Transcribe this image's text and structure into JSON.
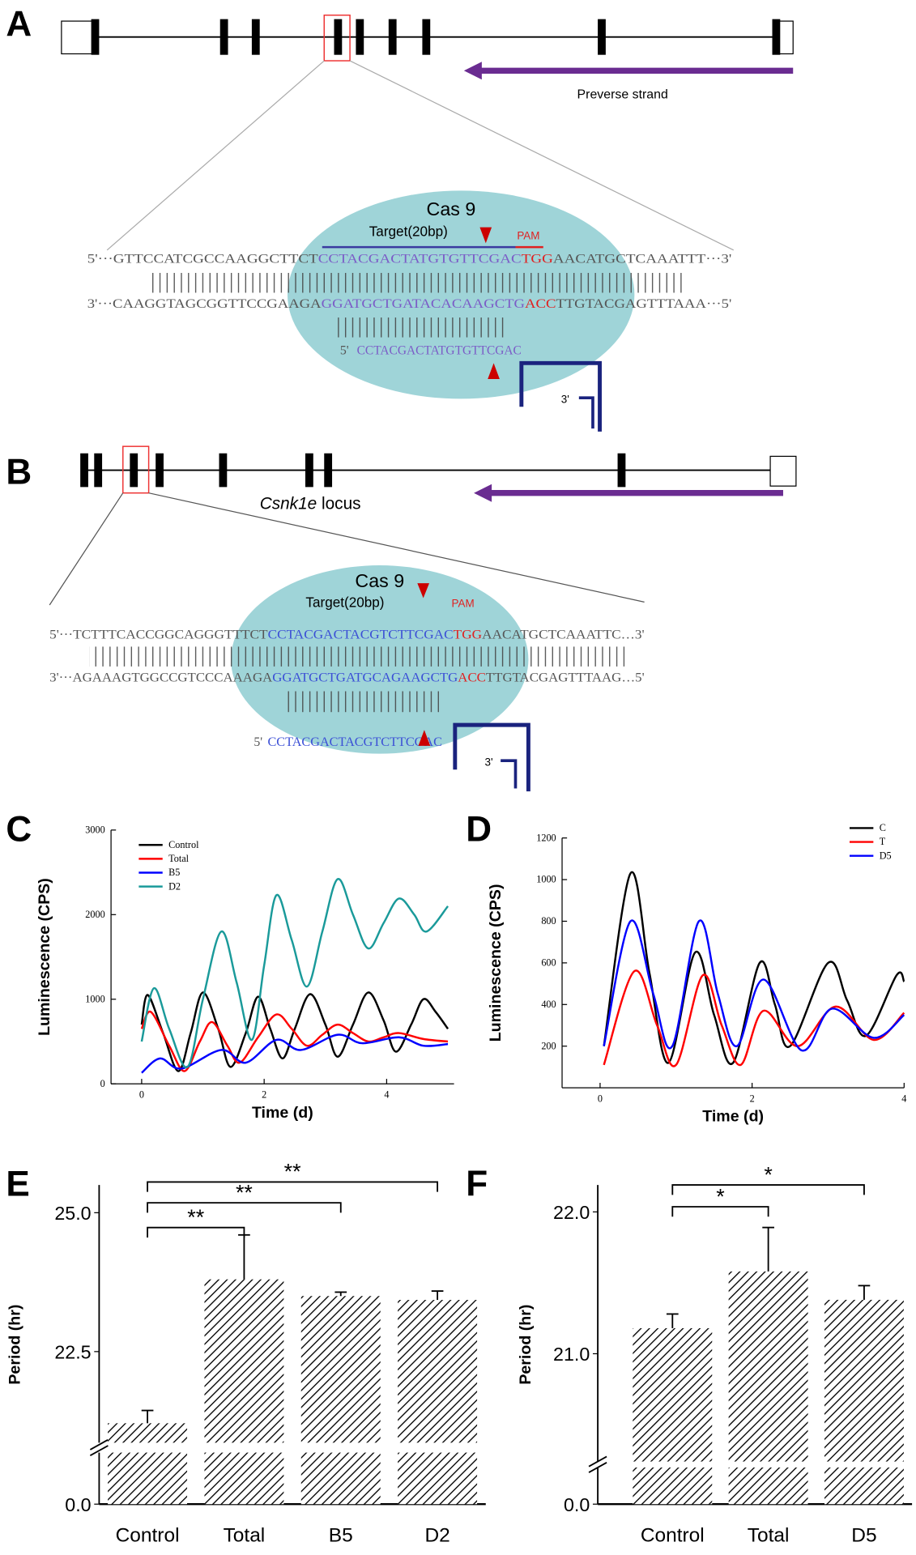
{
  "diagrams": {
    "A": {
      "label": "A",
      "strand_label": "Preverse strand",
      "cas9": "Cas 9",
      "target": "Target(20bp)",
      "pam": "PAM",
      "top_strand": [
        "5'···GTTCCATCGCCAAGGCTTCT",
        "CCTACGACTATGTGTTCGAC",
        "TGG",
        "AACATGCTCAAATTT···3'"
      ],
      "bottom_strand": [
        "3'···CAAGGTAGCGGTTCCGAAGA",
        "GGATGCTGATACACAAGCTG",
        "ACC",
        "TTGTACGAGTTTAAA···5'"
      ],
      "guide": [
        "5'",
        "CCTACGACTATGTGTTCGAC"
      ],
      "scaffold_end": "3'"
    },
    "B": {
      "label": "B",
      "locus": [
        "Csnk1e",
        " locus"
      ],
      "cas9": "Cas 9",
      "target": "Target(20bp)",
      "pam": "PAM",
      "top_strand": [
        "5'···TCTTTCACCGGCAGGGTTTCT",
        "CCTACGACTACGTCTTCGAC",
        "TGG",
        "AACATGCTCAAATTC…3'"
      ],
      "bottom_strand": [
        "3'···AGAAAGTGGCCGTCCCAAAGA",
        "GGATGCTGATGCAGAAGCTG",
        "ACC",
        "TTGTACGAGTTTAAG…5'"
      ],
      "guide": [
        "5'",
        "CCTACGACTACGTCTTCGAC"
      ],
      "scaffold_end": "3'"
    }
  },
  "chart_data": [
    {
      "panel": "C",
      "type": "line",
      "y_label": "Luminescence (CPS)",
      "x_label": "Time (d)",
      "xlim": [
        -0.5,
        5.1
      ],
      "ylim": [
        0,
        3000
      ],
      "xticks": [
        0,
        2,
        4
      ],
      "yticks": [
        0,
        1000,
        2000,
        3000
      ],
      "legend": "upper left",
      "series": [
        {
          "name": "Control",
          "color": "#000000",
          "x": [
            0,
            0.1,
            0.35,
            0.6,
            0.8,
            1.0,
            1.25,
            1.45,
            1.7,
            1.9,
            2.1,
            2.3,
            2.5,
            2.75,
            3.0,
            3.2,
            3.45,
            3.7,
            3.95,
            4.15,
            4.4,
            4.6,
            4.8,
            5.0
          ],
          "values": [
            700,
            1050,
            600,
            150,
            600,
            1080,
            650,
            200,
            600,
            1030,
            650,
            300,
            650,
            1060,
            700,
            320,
            700,
            1080,
            750,
            380,
            700,
            1000,
            850,
            650
          ]
        },
        {
          "name": "Total",
          "color": "#ff0000",
          "x": [
            0,
            0.15,
            0.45,
            0.7,
            0.95,
            1.15,
            1.4,
            1.6,
            1.9,
            2.2,
            2.45,
            2.7,
            2.95,
            3.2,
            3.45,
            3.7,
            3.95,
            4.2,
            4.6,
            5.0
          ],
          "values": [
            650,
            850,
            450,
            150,
            500,
            730,
            450,
            250,
            550,
            820,
            650,
            450,
            580,
            700,
            600,
            500,
            550,
            600,
            530,
            500
          ]
        },
        {
          "name": "B5",
          "color": "#0000ff",
          "x": [
            0,
            0.3,
            0.65,
            1.3,
            1.7,
            2.2,
            2.6,
            3.2,
            3.6,
            4.2,
            4.6,
            5.0
          ],
          "values": [
            130,
            300,
            180,
            400,
            250,
            520,
            400,
            580,
            480,
            550,
            450,
            470
          ]
        },
        {
          "name": "D2",
          "color": "#1a9a9a",
          "x": [
            0,
            0.2,
            0.45,
            0.75,
            1.0,
            1.3,
            1.55,
            1.8,
            2.0,
            2.2,
            2.45,
            2.7,
            2.95,
            3.2,
            3.45,
            3.7,
            3.95,
            4.2,
            4.45,
            4.65,
            5.0
          ],
          "values": [
            500,
            1130,
            650,
            200,
            1000,
            1800,
            1200,
            520,
            1400,
            2230,
            1700,
            1150,
            1800,
            2420,
            2000,
            1600,
            1900,
            2190,
            2000,
            1800,
            2100
          ]
        }
      ]
    },
    {
      "panel": "D",
      "type": "line",
      "y_label": "Luminescence (CPS)",
      "x_label": "Time (d)",
      "xlim": [
        -0.5,
        4
      ],
      "ylim": [
        0,
        1200
      ],
      "xticks": [
        0,
        2,
        4
      ],
      "yticks": [
        200,
        400,
        600,
        800,
        1000,
        1200
      ],
      "legend": "upper right",
      "series": [
        {
          "name": "C",
          "color": "#000000",
          "x": [
            0.05,
            0.4,
            0.65,
            0.9,
            1.25,
            1.5,
            1.75,
            2.1,
            2.3,
            2.5,
            3.0,
            3.25,
            3.5,
            3.9,
            4.0
          ],
          "values": [
            200,
            1030,
            550,
            120,
            650,
            350,
            120,
            600,
            400,
            200,
            600,
            420,
            250,
            540,
            510
          ]
        },
        {
          "name": "T",
          "color": "#ff0000",
          "x": [
            0.05,
            0.45,
            0.75,
            1.0,
            1.35,
            1.6,
            1.85,
            2.15,
            2.6,
            3.1,
            3.6,
            4.0
          ],
          "values": [
            110,
            560,
            300,
            110,
            540,
            300,
            110,
            370,
            200,
            390,
            230,
            360
          ]
        },
        {
          "name": "D5",
          "color": "#0000ff",
          "x": [
            0.05,
            0.4,
            0.7,
            0.95,
            1.3,
            1.55,
            1.8,
            2.15,
            2.65,
            3.05,
            3.6,
            4.0
          ],
          "values": [
            200,
            800,
            450,
            200,
            800,
            450,
            200,
            520,
            180,
            380,
            240,
            350
          ]
        }
      ]
    },
    {
      "panel": "E",
      "type": "bar",
      "y_label": "Period (hr)",
      "categories": [
        "Control",
        "Total",
        "B5",
        "D2"
      ],
      "values": [
        21.21,
        23.8,
        23.5,
        23.43
      ],
      "errors": [
        0.23,
        0.8,
        0.07,
        0.16
      ],
      "ylim": [
        0,
        25.5
      ],
      "axis_break": [
        0.9,
        20.86
      ],
      "yticks": [
        {
          "value": 0,
          "label": "0.0"
        },
        {
          "value": 22.5,
          "label": "22.5"
        },
        {
          "value": 25,
          "label": "25.0"
        }
      ],
      "significance": [
        {
          "from": 0,
          "to": 1,
          "label": "**"
        },
        {
          "from": 0,
          "to": 2,
          "label": "**"
        },
        {
          "from": 0,
          "to": 3,
          "label": "**"
        }
      ]
    },
    {
      "panel": "F",
      "type": "bar",
      "y_label": "Period (hr)",
      "categories": [
        "Control",
        "Total",
        "D5"
      ],
      "values": [
        21.18,
        21.58,
        21.38
      ],
      "errors": [
        0.1,
        0.31,
        0.1
      ],
      "ylim": [
        0,
        22.19
      ],
      "axis_break": [
        0.3,
        20.24
      ],
      "yticks": [
        {
          "value": 0,
          "label": "0.0"
        },
        {
          "value": 21,
          "label": "21.0"
        },
        {
          "value": 22,
          "label": "22.0"
        }
      ],
      "significance": [
        {
          "from": 0,
          "to": 1,
          "label": "*"
        },
        {
          "from": 0,
          "to": 2,
          "label": "*"
        }
      ]
    }
  ]
}
